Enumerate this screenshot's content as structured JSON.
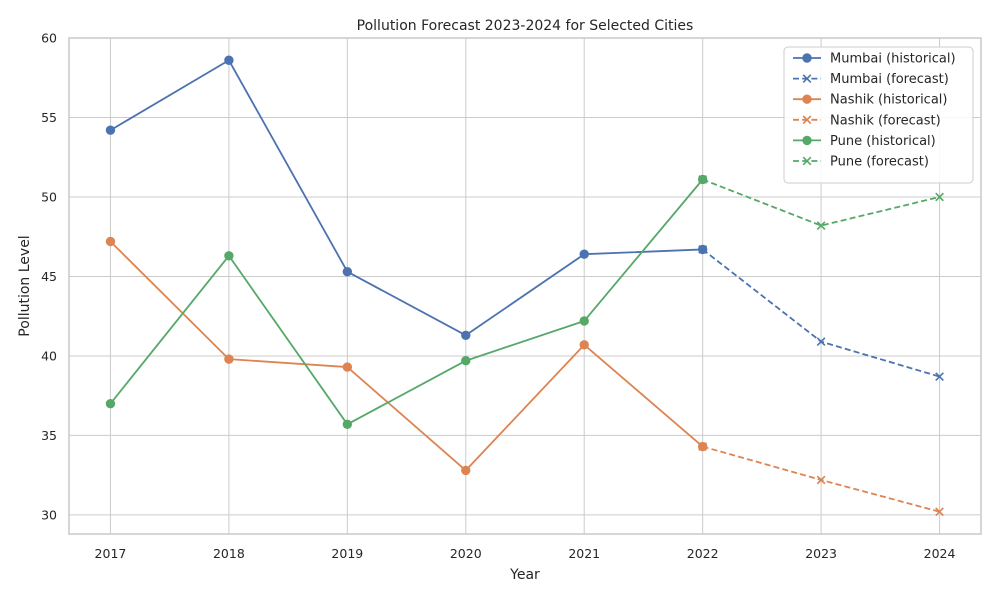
{
  "chart_data": {
    "type": "line",
    "title": "Pollution Forecast 2023-2024 for Selected Cities",
    "xlabel": "Year",
    "ylabel": "Pollution Level",
    "x_ticks": [
      2017,
      2018,
      2019,
      2020,
      2021,
      2022,
      2023,
      2024
    ],
    "xlim": [
      2016.65,
      2024.35
    ],
    "y_ticks": [
      30,
      35,
      40,
      45,
      50,
      55,
      60
    ],
    "ylim": [
      28.8,
      60
    ],
    "grid": true,
    "legend_position": "top-right",
    "series": [
      {
        "name": "Mumbai (historical)",
        "color": "#4c72b0",
        "style": "solid",
        "marker": "circle",
        "x": [
          2017,
          2018,
          2019,
          2020,
          2021,
          2022
        ],
        "y": [
          54.2,
          58.6,
          45.3,
          41.3,
          46.4,
          46.7
        ]
      },
      {
        "name": "Mumbai (forecast)",
        "color": "#4c72b0",
        "style": "dashed",
        "marker": "x",
        "x": [
          2022,
          2023,
          2024
        ],
        "y": [
          46.7,
          40.9,
          38.7
        ]
      },
      {
        "name": "Nashik (historical)",
        "color": "#dd8452",
        "style": "solid",
        "marker": "circle",
        "x": [
          2017,
          2018,
          2019,
          2020,
          2021,
          2022
        ],
        "y": [
          47.2,
          39.8,
          39.3,
          32.8,
          40.7,
          34.3
        ]
      },
      {
        "name": "Nashik (forecast)",
        "color": "#dd8452",
        "style": "dashed",
        "marker": "x",
        "x": [
          2022,
          2023,
          2024
        ],
        "y": [
          34.3,
          32.2,
          30.2
        ]
      },
      {
        "name": "Pune (historical)",
        "color": "#55a868",
        "style": "solid",
        "marker": "circle",
        "x": [
          2017,
          2018,
          2019,
          2020,
          2021,
          2022
        ],
        "y": [
          37.0,
          46.3,
          35.7,
          39.7,
          42.2,
          51.1
        ]
      },
      {
        "name": "Pune (forecast)",
        "color": "#55a868",
        "style": "dashed",
        "marker": "x",
        "x": [
          2022,
          2023,
          2024
        ],
        "y": [
          51.1,
          48.2,
          50.0
        ]
      }
    ]
  }
}
